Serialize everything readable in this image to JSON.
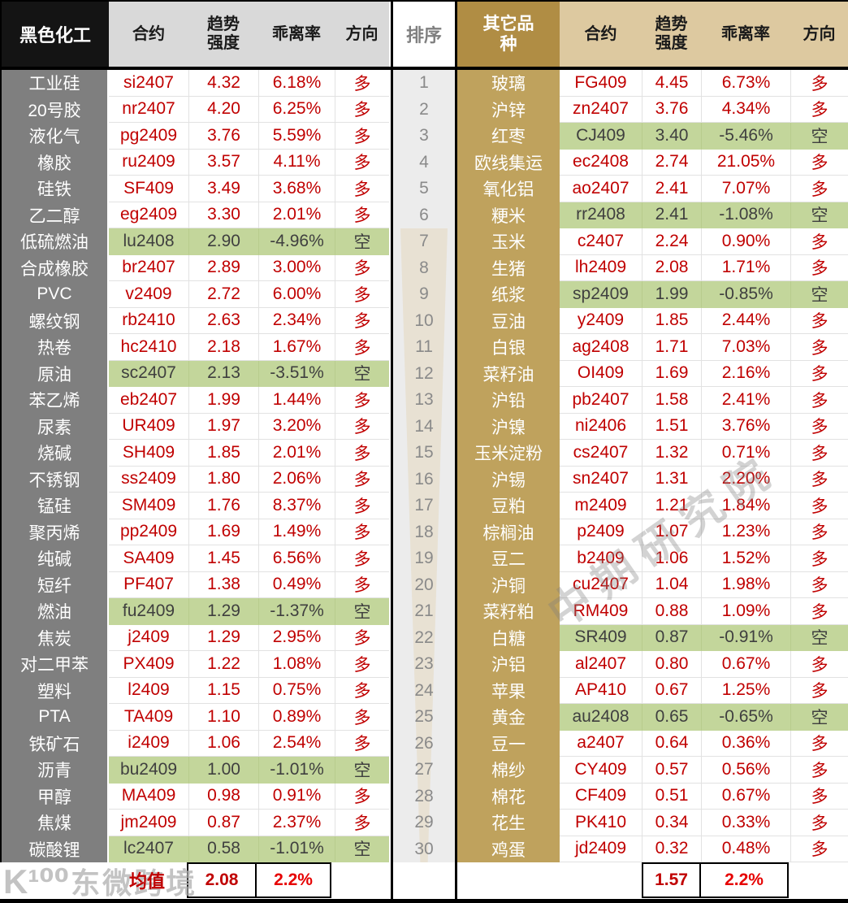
{
  "left_table": {
    "header": {
      "category": "黑色化工",
      "contract": "合约",
      "strength": "趋势强度",
      "deviation": "乖离率",
      "direction": "方向"
    },
    "rows": [
      {
        "name": "工业硅",
        "contract": "si2407",
        "strength": "4.32",
        "deviation": "6.18%",
        "direction": "多"
      },
      {
        "name": "20号胶",
        "contract": "nr2407",
        "strength": "4.20",
        "deviation": "6.25%",
        "direction": "多"
      },
      {
        "name": "液化气",
        "contract": "pg2409",
        "strength": "3.76",
        "deviation": "5.59%",
        "direction": "多"
      },
      {
        "name": "橡胶",
        "contract": "ru2409",
        "strength": "3.57",
        "deviation": "4.11%",
        "direction": "多"
      },
      {
        "name": "硅铁",
        "contract": "SF409",
        "strength": "3.49",
        "deviation": "3.68%",
        "direction": "多"
      },
      {
        "name": "乙二醇",
        "contract": "eg2409",
        "strength": "3.30",
        "deviation": "2.01%",
        "direction": "多"
      },
      {
        "name": "低硫燃油",
        "contract": "lu2408",
        "strength": "2.90",
        "deviation": "-4.96%",
        "direction": "空"
      },
      {
        "name": "合成橡胶",
        "contract": "br2407",
        "strength": "2.89",
        "deviation": "3.00%",
        "direction": "多"
      },
      {
        "name": "PVC",
        "contract": "v2409",
        "strength": "2.72",
        "deviation": "6.00%",
        "direction": "多"
      },
      {
        "name": "螺纹钢",
        "contract": "rb2410",
        "strength": "2.63",
        "deviation": "2.34%",
        "direction": "多"
      },
      {
        "name": "热卷",
        "contract": "hc2410",
        "strength": "2.18",
        "deviation": "1.67%",
        "direction": "多"
      },
      {
        "name": "原油",
        "contract": "sc2407",
        "strength": "2.13",
        "deviation": "-3.51%",
        "direction": "空"
      },
      {
        "name": "苯乙烯",
        "contract": "eb2407",
        "strength": "1.99",
        "deviation": "1.44%",
        "direction": "多"
      },
      {
        "name": "尿素",
        "contract": "UR409",
        "strength": "1.97",
        "deviation": "3.20%",
        "direction": "多"
      },
      {
        "name": "烧碱",
        "contract": "SH409",
        "strength": "1.85",
        "deviation": "2.01%",
        "direction": "多"
      },
      {
        "name": "不锈钢",
        "contract": "ss2409",
        "strength": "1.80",
        "deviation": "2.06%",
        "direction": "多"
      },
      {
        "name": "锰硅",
        "contract": "SM409",
        "strength": "1.76",
        "deviation": "8.37%",
        "direction": "多"
      },
      {
        "name": "聚丙烯",
        "contract": "pp2409",
        "strength": "1.69",
        "deviation": "1.49%",
        "direction": "多"
      },
      {
        "name": "纯碱",
        "contract": "SA409",
        "strength": "1.45",
        "deviation": "6.56%",
        "direction": "多"
      },
      {
        "name": "短纤",
        "contract": "PF407",
        "strength": "1.38",
        "deviation": "0.49%",
        "direction": "多"
      },
      {
        "name": "燃油",
        "contract": "fu2409",
        "strength": "1.29",
        "deviation": "-1.37%",
        "direction": "空"
      },
      {
        "name": "焦炭",
        "contract": "j2409",
        "strength": "1.29",
        "deviation": "2.95%",
        "direction": "多"
      },
      {
        "name": "对二甲苯",
        "contract": "PX409",
        "strength": "1.22",
        "deviation": "1.08%",
        "direction": "多"
      },
      {
        "name": "塑料",
        "contract": "l2409",
        "strength": "1.15",
        "deviation": "0.75%",
        "direction": "多"
      },
      {
        "name": "PTA",
        "contract": "TA409",
        "strength": "1.10",
        "deviation": "0.89%",
        "direction": "多"
      },
      {
        "name": "铁矿石",
        "contract": "i2409",
        "strength": "1.06",
        "deviation": "2.54%",
        "direction": "多"
      },
      {
        "name": "沥青",
        "contract": "bu2409",
        "strength": "1.00",
        "deviation": "-1.01%",
        "direction": "空"
      },
      {
        "name": "甲醇",
        "contract": "MA409",
        "strength": "0.98",
        "deviation": "0.91%",
        "direction": "多"
      },
      {
        "name": "焦煤",
        "contract": "jm2409",
        "strength": "0.87",
        "deviation": "2.37%",
        "direction": "多"
      },
      {
        "name": "碳酸锂",
        "contract": "lc2407",
        "strength": "0.58",
        "deviation": "-1.01%",
        "direction": "空"
      }
    ],
    "footer": {
      "label": "均值",
      "strength": "2.08",
      "deviation": "2.2%"
    }
  },
  "rank_column": {
    "header": "排序",
    "ranks": [
      "1",
      "2",
      "3",
      "4",
      "5",
      "6",
      "7",
      "8",
      "9",
      "10",
      "11",
      "12",
      "13",
      "14",
      "15",
      "16",
      "17",
      "18",
      "19",
      "20",
      "21",
      "22",
      "23",
      "24",
      "25",
      "26",
      "27",
      "28",
      "29",
      "30"
    ]
  },
  "right_table": {
    "header": {
      "category": "其它品种",
      "contract": "合约",
      "strength": "趋势强度",
      "deviation": "乖离率",
      "direction": "方向"
    },
    "rows": [
      {
        "name": "玻璃",
        "contract": "FG409",
        "strength": "4.45",
        "deviation": "6.73%",
        "direction": "多"
      },
      {
        "name": "沪锌",
        "contract": "zn2407",
        "strength": "3.76",
        "deviation": "4.34%",
        "direction": "多"
      },
      {
        "name": "红枣",
        "contract": "CJ409",
        "strength": "3.40",
        "deviation": "-5.46%",
        "direction": "空"
      },
      {
        "name": "欧线集运",
        "contract": "ec2408",
        "strength": "2.74",
        "deviation": "21.05%",
        "direction": "多"
      },
      {
        "name": "氧化铝",
        "contract": "ao2407",
        "strength": "2.41",
        "deviation": "7.07%",
        "direction": "多"
      },
      {
        "name": "粳米",
        "contract": "rr2408",
        "strength": "2.41",
        "deviation": "-1.08%",
        "direction": "空"
      },
      {
        "name": "玉米",
        "contract": "c2407",
        "strength": "2.24",
        "deviation": "0.90%",
        "direction": "多"
      },
      {
        "name": "生猪",
        "contract": "lh2409",
        "strength": "2.08",
        "deviation": "1.71%",
        "direction": "多"
      },
      {
        "name": "纸浆",
        "contract": "sp2409",
        "strength": "1.99",
        "deviation": "-0.85%",
        "direction": "空"
      },
      {
        "name": "豆油",
        "contract": "y2409",
        "strength": "1.85",
        "deviation": "2.44%",
        "direction": "多"
      },
      {
        "name": "白银",
        "contract": "ag2408",
        "strength": "1.71",
        "deviation": "7.03%",
        "direction": "多"
      },
      {
        "name": "菜籽油",
        "contract": "OI409",
        "strength": "1.69",
        "deviation": "2.16%",
        "direction": "多"
      },
      {
        "name": "沪铅",
        "contract": "pb2407",
        "strength": "1.58",
        "deviation": "2.41%",
        "direction": "多"
      },
      {
        "name": "沪镍",
        "contract": "ni2406",
        "strength": "1.51",
        "deviation": "3.76%",
        "direction": "多"
      },
      {
        "name": "玉米淀粉",
        "contract": "cs2407",
        "strength": "1.32",
        "deviation": "0.71%",
        "direction": "多"
      },
      {
        "name": "沪锡",
        "contract": "sn2407",
        "strength": "1.31",
        "deviation": "2.20%",
        "direction": "多"
      },
      {
        "name": "豆粕",
        "contract": "m2409",
        "strength": "1.21",
        "deviation": "1.84%",
        "direction": "多"
      },
      {
        "name": "棕榈油",
        "contract": "p2409",
        "strength": "1.07",
        "deviation": "1.23%",
        "direction": "多"
      },
      {
        "name": "豆二",
        "contract": "b2409",
        "strength": "1.06",
        "deviation": "1.52%",
        "direction": "多"
      },
      {
        "name": "沪铜",
        "contract": "cu2407",
        "strength": "1.04",
        "deviation": "1.98%",
        "direction": "多"
      },
      {
        "name": "菜籽粕",
        "contract": "RM409",
        "strength": "0.88",
        "deviation": "1.09%",
        "direction": "多"
      },
      {
        "name": "白糖",
        "contract": "SR409",
        "strstrength": "",
        "strength": "0.87",
        "deviation": "-0.91%",
        "direction": "空"
      },
      {
        "name": "沪铝",
        "contract": "al2407",
        "strength": "0.80",
        "deviation": "0.67%",
        "direction": "多"
      },
      {
        "name": "苹果",
        "contract": "AP410",
        "strength": "0.67",
        "deviation": "1.25%",
        "direction": "多"
      },
      {
        "name": "黄金",
        "contract": "au2408",
        "strength": "0.65",
        "deviation": "-0.65%",
        "direction": "空"
      },
      {
        "name": "豆一",
        "contract": "a2407",
        "strength": "0.64",
        "deviation": "0.36%",
        "direction": "多"
      },
      {
        "name": "棉纱",
        "contract": "CY409",
        "strength": "0.57",
        "deviation": "0.56%",
        "direction": "多"
      },
      {
        "name": "棉花",
        "contract": "CF409",
        "strength": "0.51",
        "deviation": "0.67%",
        "direction": "多"
      },
      {
        "name": "花生",
        "contract": "PK410",
        "strength": "0.34",
        "deviation": "0.33%",
        "direction": "多"
      },
      {
        "name": "鸡蛋",
        "contract": "jd2409",
        "strength": "0.32",
        "deviation": "0.48%",
        "direction": "多"
      }
    ],
    "footer": {
      "label": "",
      "strength": "1.57",
      "deviation": "2.2%"
    }
  },
  "watermarks": {
    "diagonal": "中期研究院",
    "logo": "K¹⁰⁰",
    "brand": "东微跨境"
  },
  "colors": {
    "value_red": "#c00000",
    "short_row_green": "#c3d69b",
    "short_text": "#3f3f3f",
    "left_title_bg": "#141414",
    "left_category_bg": "#7f7f7f",
    "left_header_bg": "#d9d9d9",
    "right_title_bg": "#b08d44",
    "right_header_bg": "#ddc9a0",
    "right_category_bg": "#bfa25d",
    "rank_bg": "#ececec"
  }
}
